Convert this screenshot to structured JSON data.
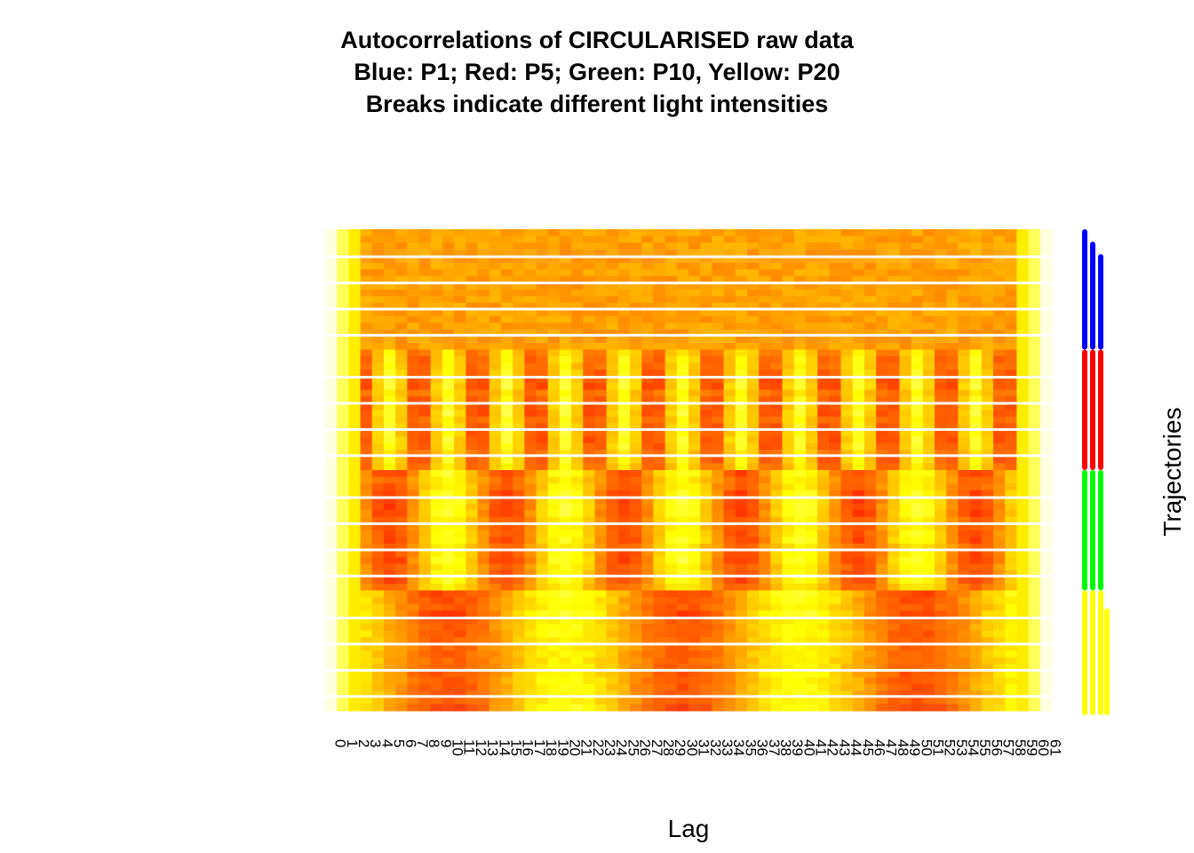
{
  "chart_data": {
    "type": "heatmap",
    "title_lines": [
      "Autocorrelations of CIRCULARISED raw data",
      "Blue: P1; Red: P5; Green: P10, Yellow: P20",
      "Breaks indicate different light intensities"
    ],
    "xlabel": "Lag",
    "ylabel": "Trajectories",
    "x_ticks": [
      "0",
      "1",
      "2",
      "3",
      "4",
      "5",
      "6",
      "7",
      "8",
      "9",
      "10",
      "11",
      "12",
      "13",
      "14",
      "15",
      "16",
      "17",
      "18",
      "19",
      "20",
      "21",
      "22",
      "23",
      "24",
      "25",
      "26",
      "27",
      "28",
      "29",
      "30",
      "31",
      "32",
      "33",
      "34",
      "35",
      "36",
      "37",
      "38",
      "39",
      "40",
      "41",
      "42",
      "43",
      "44",
      "45",
      "46",
      "47",
      "48",
      "49",
      "50",
      "51",
      "52",
      "53",
      "54",
      "55",
      "56",
      "57",
      "58",
      "59",
      "60",
      "61"
    ],
    "color_scale": [
      "#ff0000",
      "#ff8000",
      "#ffff00",
      "#ffffe0"
    ],
    "groups": [
      {
        "name": "P1",
        "color": "#0000ff",
        "period": 0,
        "base": 0.42
      },
      {
        "name": "P5",
        "color": "#ff0000",
        "period": 5,
        "base": 0.45
      },
      {
        "name": "P10",
        "color": "#00ff00",
        "period": 10,
        "base": 0.45
      },
      {
        "name": "P20",
        "color": "#ffff00",
        "period": 20,
        "base": 0.45
      }
    ]
  }
}
